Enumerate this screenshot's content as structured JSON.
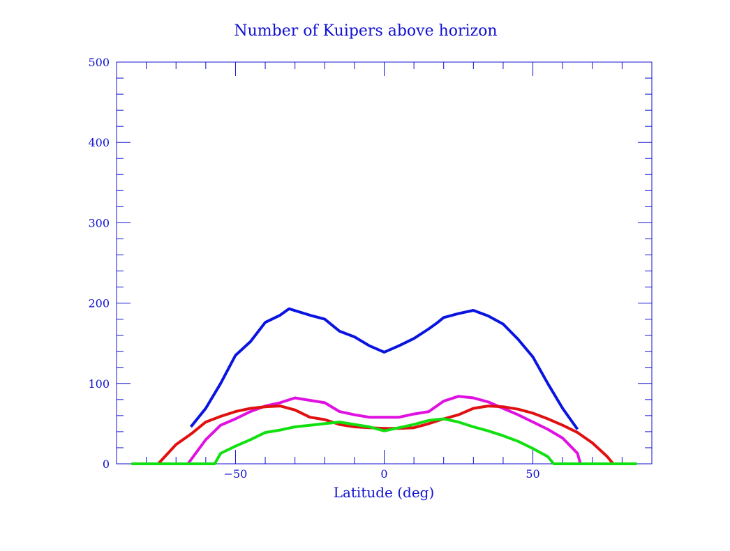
{
  "chart_data": {
    "type": "line",
    "title": "Number of Kuipers above horizon",
    "xlabel": "Latitude (deg)",
    "ylabel": "",
    "xlim": [
      -90,
      90
    ],
    "ylim": [
      0,
      500
    ],
    "xticks": [
      -50,
      0,
      50
    ],
    "yticks": [
      0,
      100,
      200,
      300,
      400,
      500
    ],
    "grid": false,
    "axis_color": "#1010d0",
    "series": [
      {
        "color": "#0a14e0",
        "x": [
          -65,
          -60,
          -55,
          -50,
          -45,
          -40,
          -35,
          -32,
          -25,
          -20,
          -15,
          -10,
          -5,
          0,
          5,
          10,
          15,
          18,
          20,
          25,
          30,
          35,
          40,
          45,
          50,
          55,
          60,
          65
        ],
        "y": [
          46,
          69,
          100,
          135,
          152,
          176,
          185,
          193,
          185,
          180,
          165,
          158,
          147,
          139,
          147,
          156,
          168,
          176,
          182,
          187,
          191,
          184,
          174,
          155,
          133,
          100,
          69,
          43
        ]
      },
      {
        "color": "#e010e0",
        "x": [
          -66,
          -60,
          -55,
          -50,
          -45,
          -40,
          -35,
          -30,
          -25,
          -20,
          -15,
          -10,
          -5,
          0,
          5,
          10,
          15,
          20,
          25,
          30,
          35,
          40,
          45,
          50,
          55,
          60,
          65,
          66
        ],
        "y": [
          0,
          30,
          48,
          56,
          65,
          72,
          76,
          82,
          79,
          76,
          65,
          61,
          58,
          58,
          58,
          62,
          65,
          78,
          84,
          82,
          77,
          69,
          61,
          52,
          43,
          32,
          13,
          0
        ]
      },
      {
        "color": "#e01010",
        "x": [
          -76,
          -70,
          -65,
          -60,
          -55,
          -50,
          -45,
          -40,
          -35,
          -30,
          -25,
          -20,
          -15,
          -10,
          -5,
          0,
          5,
          10,
          15,
          20,
          25,
          30,
          35,
          40,
          45,
          50,
          55,
          60,
          65,
          70,
          75,
          77
        ],
        "y": [
          0,
          24,
          37,
          52,
          59,
          65,
          69,
          71,
          72,
          67,
          58,
          55,
          49,
          46,
          45,
          44,
          44,
          45,
          50,
          56,
          61,
          69,
          72,
          71,
          68,
          63,
          56,
          48,
          39,
          26,
          9,
          0
        ]
      },
      {
        "color": "#10e010",
        "x": [
          -85,
          -57,
          -55,
          -50,
          -45,
          -40,
          -35,
          -30,
          -25,
          -20,
          -15,
          -10,
          -5,
          0,
          5,
          10,
          15,
          20,
          25,
          30,
          35,
          40,
          45,
          50,
          55,
          57,
          85
        ],
        "y": [
          0,
          0,
          13,
          22,
          30,
          39,
          42,
          46,
          48,
          50,
          52,
          49,
          46,
          41,
          45,
          49,
          54,
          56,
          52,
          46,
          41,
          35,
          28,
          19,
          9,
          0,
          0
        ]
      }
    ]
  }
}
